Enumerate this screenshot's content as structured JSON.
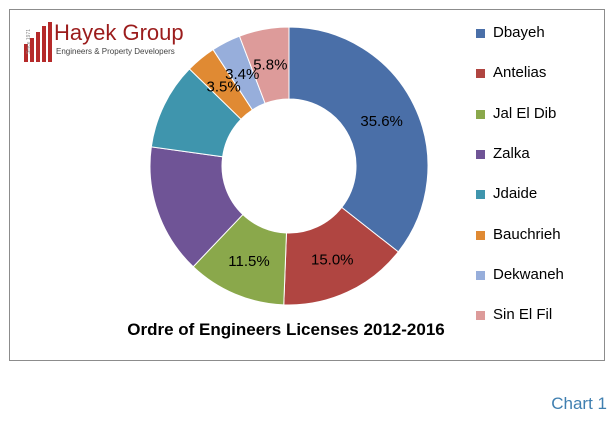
{
  "logo": {
    "name": "Hayek Group",
    "tagline": "Engineers & Property Developers",
    "since": "Since 1971"
  },
  "chart_data": {
    "type": "pie",
    "variant": "donut",
    "title": "Ordre of Engineers Licenses 2012-2016",
    "legend_position": "right",
    "categories": [
      "Dbayeh",
      "Antelias",
      "Jal El Dib",
      "Zalka",
      "Jdaide",
      "Bauchrieh",
      "Dekwaneh",
      "Sin El Fil"
    ],
    "values": [
      35.6,
      15.0,
      11.5,
      15.1,
      10.1,
      3.5,
      3.4,
      5.8
    ],
    "labels": [
      "35.6%",
      "15.0%",
      "11.5%",
      "",
      "",
      "3.5%",
      "3.4%",
      "5.8%"
    ],
    "colors": [
      "#4a6fa8",
      "#b04541",
      "#8aa84b",
      "#6f5496",
      "#3f95ad",
      "#e08a33",
      "#97aedb",
      "#dd9b9a"
    ]
  },
  "caption": "Chart 1"
}
